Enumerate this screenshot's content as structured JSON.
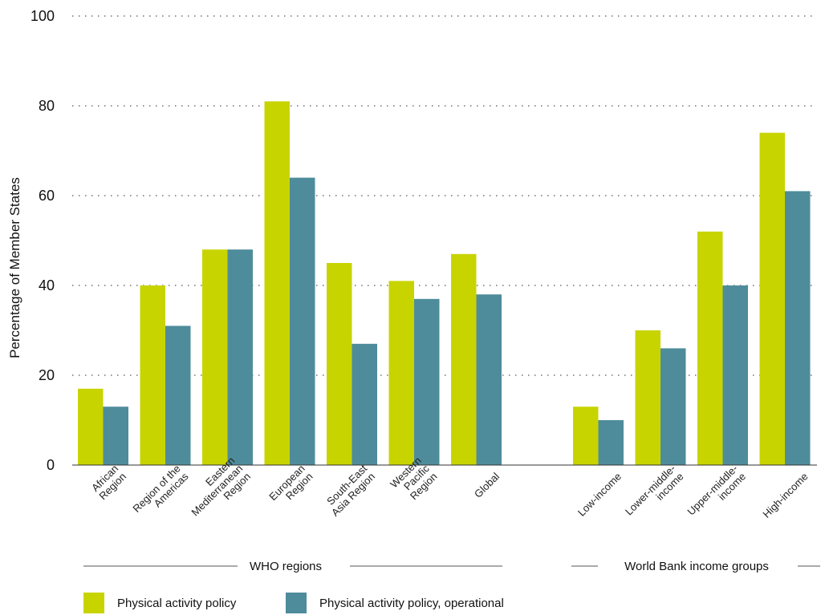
{
  "chart_data": {
    "type": "bar",
    "ylabel": "Percentage of Member States",
    "ylim": [
      0,
      100
    ],
    "yticks": [
      0,
      20,
      40,
      60,
      80,
      100
    ],
    "grid": true,
    "legend_position": "bottom-left",
    "colors": {
      "policy": "#c8d400",
      "operational": "#4e8c9b"
    },
    "groups": [
      {
        "label": "WHO regions",
        "categories": [
          [
            "African",
            "Region"
          ],
          [
            "Region of the",
            "Americas"
          ],
          [
            "Eastern",
            "Mediterranean",
            "Region"
          ],
          [
            "European",
            "Region"
          ],
          [
            "South-East",
            "Asia Region"
          ],
          [
            "Western",
            "Pacific",
            "Region"
          ],
          [
            "Global"
          ]
        ]
      },
      {
        "label": "World Bank income groups",
        "categories": [
          [
            "Low-income"
          ],
          [
            "Lower-middle-",
            "income"
          ],
          [
            "Upper-middle-",
            "income"
          ],
          [
            "High-income"
          ]
        ]
      }
    ],
    "series": [
      {
        "name": "Physical activity policy",
        "color": "#c8d400",
        "values": [
          17,
          40,
          48,
          81,
          45,
          41,
          47,
          13,
          30,
          52,
          74
        ]
      },
      {
        "name": "Physical activity policy, operational",
        "color": "#4e8c9b",
        "values": [
          13,
          31,
          48,
          64,
          27,
          37,
          38,
          10,
          26,
          40,
          61
        ]
      }
    ]
  }
}
